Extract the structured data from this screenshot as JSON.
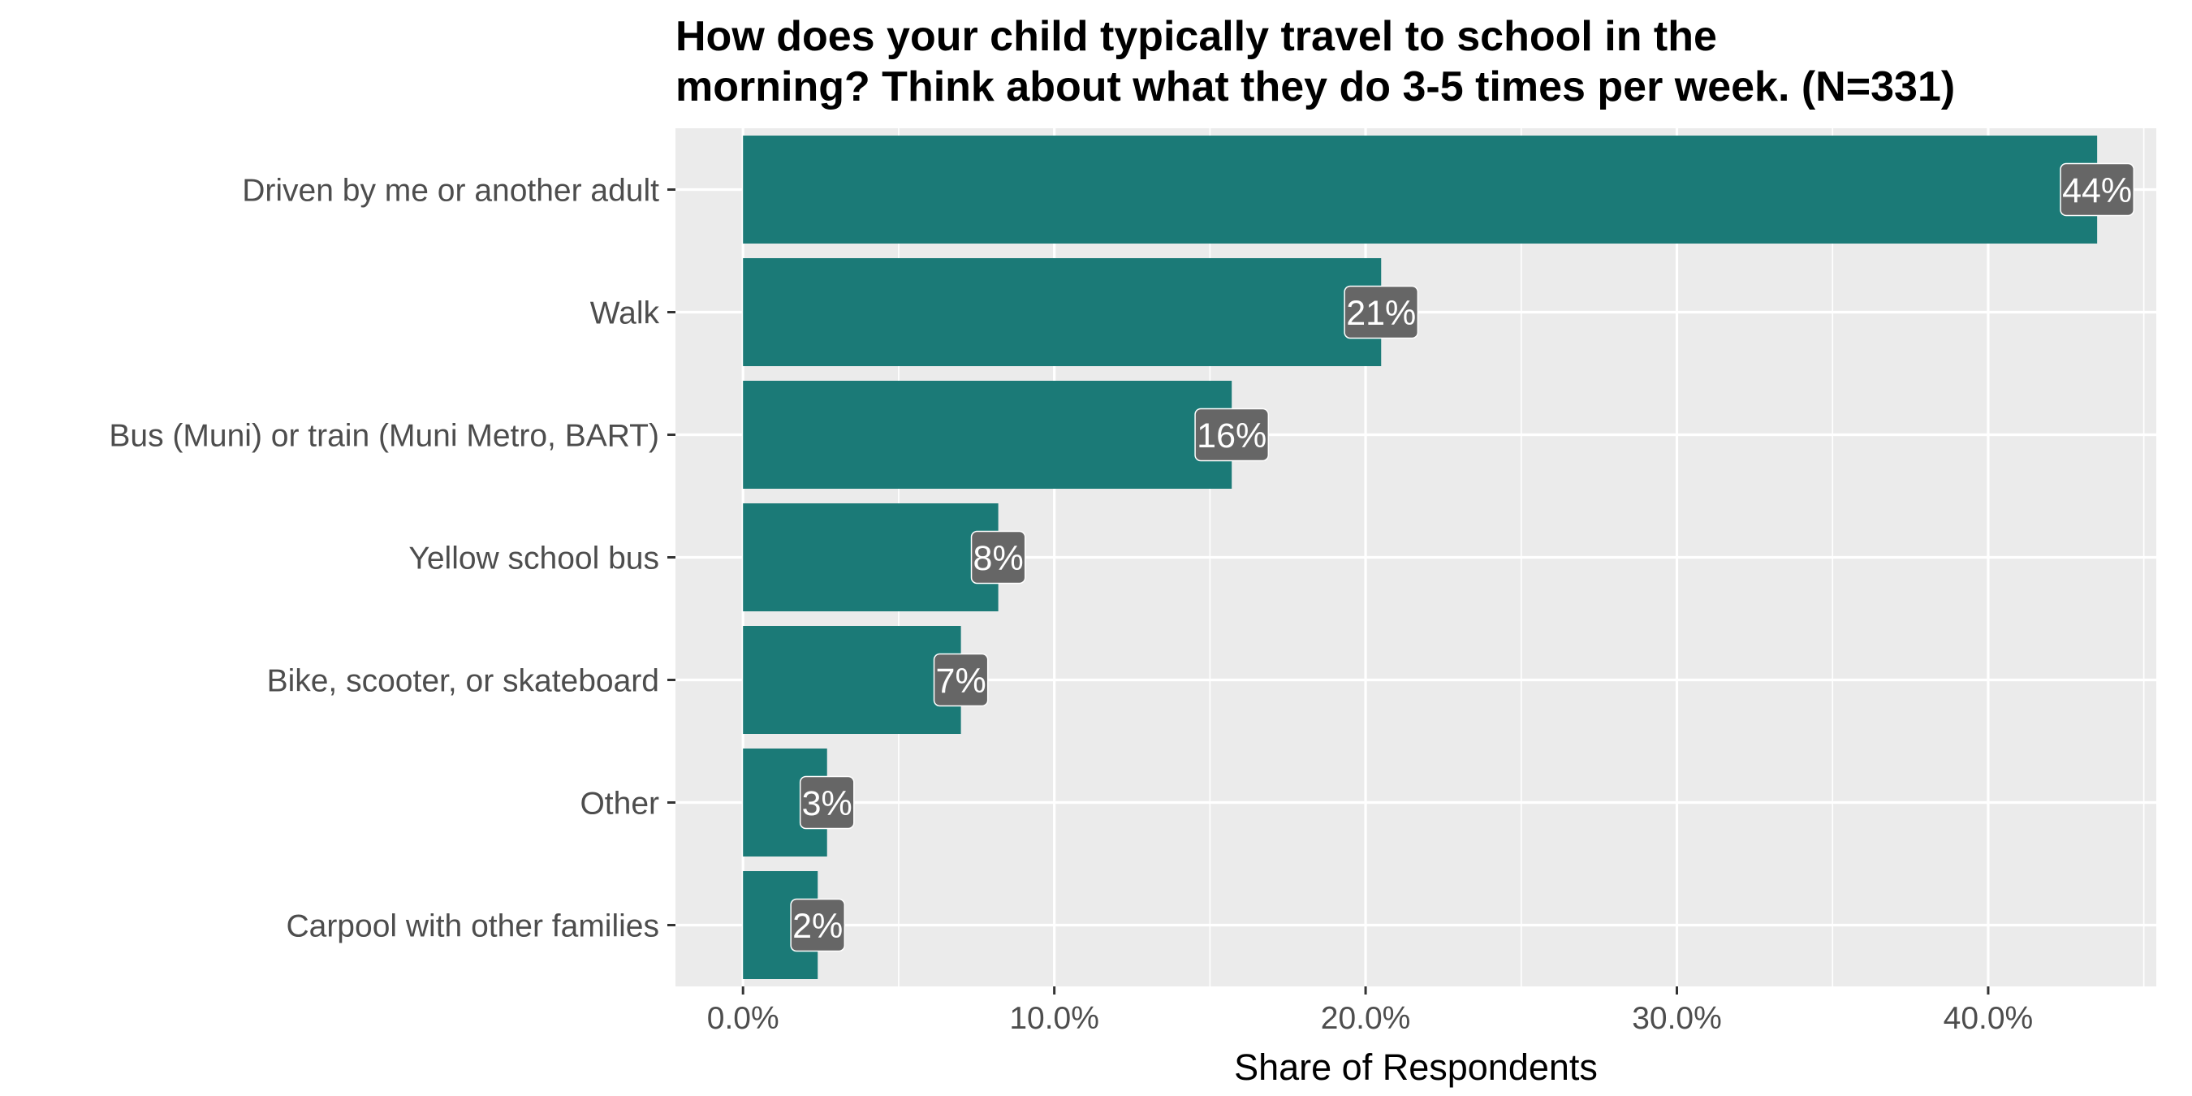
{
  "chart_data": {
    "type": "bar",
    "orientation": "horizontal",
    "title_lines": [
      "How does your child typically travel to school in the",
      "morning? Think about what they do 3-5 times per week. (N=331)"
    ],
    "xlabel": "Share of Respondents",
    "ylabel": "",
    "xlim": [
      -2.17,
      45.4
    ],
    "x_ticks": [
      0,
      10,
      20,
      30,
      40
    ],
    "x_tick_labels": [
      "0.0%",
      "10.0%",
      "20.0%",
      "30.0%",
      "40.0%"
    ],
    "grid": true,
    "legend": "none",
    "categories": [
      "Driven by me or another adult",
      "Walk",
      "Bus (Muni) or train (Muni Metro, BART)",
      "Yellow school bus",
      "Bike, scooter, or skateboard",
      "Other",
      "Carpool with other families"
    ],
    "values": [
      43.5,
      20.5,
      15.7,
      8.2,
      7.0,
      2.7,
      2.4
    ],
    "data_labels": [
      "44%",
      "21%",
      "16%",
      "8%",
      "7%",
      "3%",
      "2%"
    ]
  },
  "colors": {
    "bar": "#1b7a77",
    "panel_background": "#ebebeb",
    "grid_major": "#ffffff",
    "label_box": "#666666",
    "label_text": "#ffffff",
    "axis_text": "#4d4d4d",
    "title_text": "#000000"
  }
}
